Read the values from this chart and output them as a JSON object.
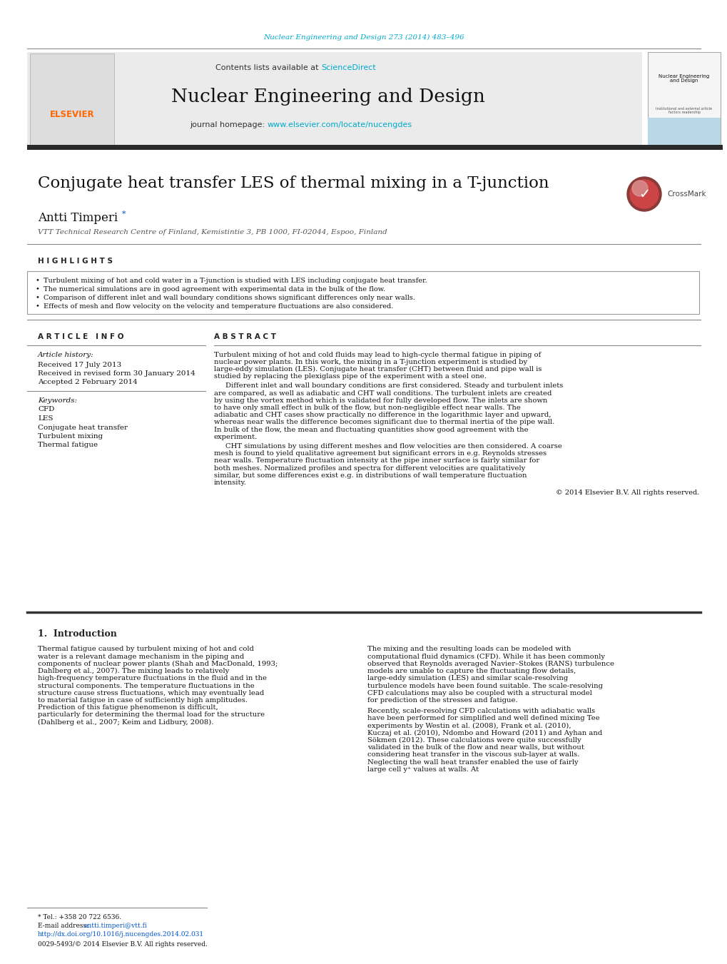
{
  "journal_ref": "Nuclear Engineering and Design 273 (2014) 483–496",
  "journal_ref_color": "#00aacc",
  "header_bg": "#e8e8e8",
  "journal_name": "Nuclear Engineering and Design",
  "contents_text": "Contents lists available at ",
  "sciencedirect_text": "ScienceDirect",
  "sciencedirect_color": "#00aacc",
  "journal_homepage_text": "journal homepage: ",
  "journal_url": "www.elsevier.com/locate/nucengdes",
  "journal_url_color": "#00aacc",
  "elsevier_color": "#ff6600",
  "article_title": "Conjugate heat transfer LES of thermal mixing in a T-junction",
  "author": "Antti Timperi",
  "author_superscript": "*",
  "affiliation": "VTT Technical Research Centre of Finland, Kemistintie 3, PB 1000, FI-02044, Espoo, Finland",
  "highlights_title": "H I G H L I G H T S",
  "highlights": [
    "Turbulent mixing of hot and cold water in a T-junction is studied with LES including conjugate heat transfer.",
    "The numerical simulations are in good agreement with experimental data in the bulk of the flow.",
    "Comparison of different inlet and wall boundary conditions shows significant differences only near walls.",
    "Effects of mesh and flow velocity on the velocity and temperature fluctuations are also considered."
  ],
  "article_info_title": "A R T I C L E   I N F O",
  "article_history_label": "Article history:",
  "received_date": "Received 17 July 2013",
  "revised_date": "Received in revised form 30 January 2014",
  "accepted_date": "Accepted 2 February 2014",
  "keywords_label": "Keywords:",
  "keywords": [
    "CFD",
    "LES",
    "Conjugate heat transfer",
    "Turbulent mixing",
    "Thermal fatigue"
  ],
  "abstract_title": "A B S T R A C T",
  "abstract_p1": "Turbulent mixing of hot and cold fluids may lead to high-cycle thermal fatigue in piping of nuclear power plants. In this work, the mixing in a T-junction experiment is studied by large-eddy simulation (LES). Conjugate heat transfer (CHT) between fluid and pipe wall is studied by replacing the plexiglass pipe of the experiment with a steel one.",
  "abstract_p2": "Different inlet and wall boundary conditions are first considered. Steady and turbulent inlets are compared, as well as adiabatic and CHT wall conditions. The turbulent inlets are created by using the vortex method which is validated for fully developed flow. The inlets are shown to have only small effect in bulk of the flow, but non-negligible effect near walls. The adiabatic and CHT cases show practically no difference in the logarithmic layer and upward, whereas near walls the difference becomes significant due to thermal inertia of the pipe wall. In bulk of the flow, the mean and fluctuating quantities show good agreement with the experiment.",
  "abstract_p3": "CHT simulations by using different meshes and flow velocities are then considered. A coarse mesh is found to yield qualitative agreement but significant errors in e.g. Reynolds stresses near walls. Temperature fluctuation intensity at the pipe inner surface is fairly similar for both meshes. Normalized profiles and spectra for different velocities are qualitatively similar, but some differences exist e.g. in distributions of wall temperature fluctuation intensity.",
  "copyright": "© 2014 Elsevier B.V. All rights reserved.",
  "intro_title": "1.  Introduction",
  "intro_col1_p1": "Thermal fatigue caused by turbulent mixing of hot and cold water is a relevant damage mechanism in the piping and components of nuclear power plants (Shah and MacDonald, 1993; Dahlberg et al., 2007). The mixing leads to relatively high-frequency temperature fluctuations in the fluid and in the structural components. The temperature fluctuations in the structure cause stress fluctuations, which may eventually lead to material fatigue in case of sufficiently high amplitudes. Prediction of this fatigue phenomenon is difficult, particularly for determining the thermal load for the structure (Dahlberg et al., 2007; Keim and Lidbury, 2008).",
  "intro_col2_p1": "The mixing and the resulting loads can be modeled with computational fluid dynamics (CFD). While it has been commonly observed that Reynolds averaged Navier–Stokes (RANS) turbulence models are unable to capture the fluctuating flow details, large-eddy simulation (LES) and similar scale-resolving turbulence models have been found suitable. The scale-resolving CFD calculations may also be coupled with a structural model for prediction of the stresses and fatigue.",
  "intro_col2_p2": "Recently, scale-resolving CFD calculations with adiabatic walls have been performed for simplified and well defined mixing Tee experiments by Westin et al. (2008), Frank et al. (2010), Kuczaj et al. (2010), Ndombo and Howard (2011) and Ayhan and Sökmen (2012). These calculations were quite successfully validated in the bulk of the flow and near walls, but without considering heat transfer in the viscous sub-layer at walls. Neglecting the wall heat transfer enabled the use of fairly large cell y⁺ values at walls. At",
  "footnote_tel": "* Tel.: +358 20 722 6536.",
  "footnote_email_label": "E-mail address: ",
  "footnote_email": "antti.timperi@vtt.fi",
  "doi_text": "http://dx.doi.org/10.1016/j.nucengdes.2014.02.031",
  "issn_text": "0029-5493/© 2014 Elsevier B.V. All rights reserved.",
  "bg_color": "#ffffff",
  "text_color": "#000000",
  "header_divider_color": "#000000",
  "thick_bar_color": "#2a2a2a"
}
